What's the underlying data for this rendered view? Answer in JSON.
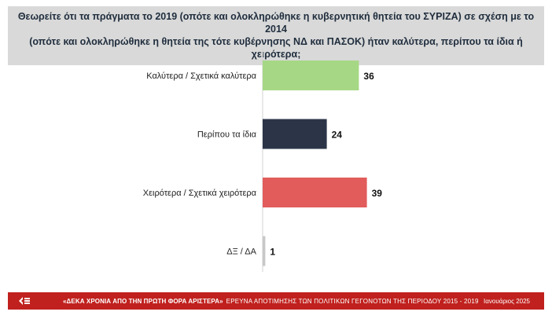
{
  "question": {
    "line1": "Θεωρείτε ότι τα πράγματα το 2019 (οπότε και ολοκληρώθηκε η κυβερνητική θητεία του ΣΥΡΙΖΑ) σε σχέση με το 2014",
    "line2": "(οπότε και ολοκληρώθηκε η θητεία της τότε κυβέρνησης ΝΔ και ΠΑΣΟΚ) ήταν καλύτερα, περίπου τα ίδια ή χειρότερα;"
  },
  "chart_data": {
    "type": "bar",
    "orientation": "horizontal",
    "categories": [
      "Καλύτερα / Σχετικά καλύτερα",
      "Περίπου τα ίδια",
      "Χειρότερα / Σχετικά χειρότερα",
      "ΔΞ / ΔΑ"
    ],
    "values": [
      36,
      24,
      39,
      1
    ],
    "colors": [
      "#a6d785",
      "#2b3547",
      "#e25c5c",
      "#c8c8c8"
    ],
    "xlim": [
      0,
      100
    ],
    "grid": false,
    "legend": "none",
    "title": "",
    "xlabel": "",
    "ylabel": ""
  },
  "footer": {
    "campaign": "«ΔΕΚΑ ΧΡΟΝΙΑ ΑΠΟ ΤΗΝ ΠΡΩΤΗ ΦΟΡΑ ΑΡΙΣΤΕΡΑ»",
    "subtitle": "ΕΡΕΥΝΑ ΑΠΟΤΙΜΗΣΗΣ ΤΩΝ ΠΟΛΙΤΙΚΩΝ ΓΕΓΟΝΟΤΩΝ ΤΗΣ ΠΕΡΙΟΔΟΥ 2015 - 2019",
    "date": "Ιανουάριος 2025",
    "background_color": "#c0211e",
    "logo_icon": "institute-logo-icon"
  }
}
